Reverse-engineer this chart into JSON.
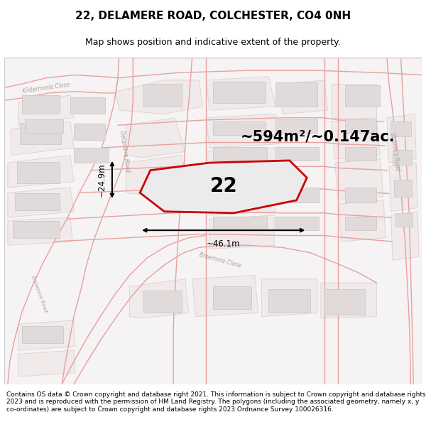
{
  "title": "22, DELAMERE ROAD, COLCHESTER, CO4 0NH",
  "subtitle": "Map shows position and indicative extent of the property.",
  "area_label": "~594m²/~0.147ac.",
  "plot_number": "22",
  "width_label": "~46.1m",
  "height_label": "~24.9m",
  "footer": "Contains OS data © Crown copyright and database right 2021. This information is subject to Crown copyright and database rights 2023 and is reproduced with the permission of HM Land Registry. The polygons (including the associated geometry, namely x, y co-ordinates) are subject to Crown copyright and database rights 2023 Ordnance Survey 100026316.",
  "map_bg": "#f5f3f3",
  "plot_fill": "#ebebeb",
  "plot_edge": "#cc0000",
  "road_line_color": "#e8a0a0",
  "road_fill_color": "#ffffff",
  "building_fill": "#e0dada",
  "building_edge": "#d0c8c8",
  "block_fill": "#f0eaea",
  "block_edge": "#e0d0d0",
  "label_color": "#b0a0a0",
  "title_fontsize": 11,
  "subtitle_fontsize": 9,
  "area_fontsize": 15,
  "plot_num_fontsize": 20,
  "footer_fontsize": 6.5,
  "dim_fontsize": 8.5
}
